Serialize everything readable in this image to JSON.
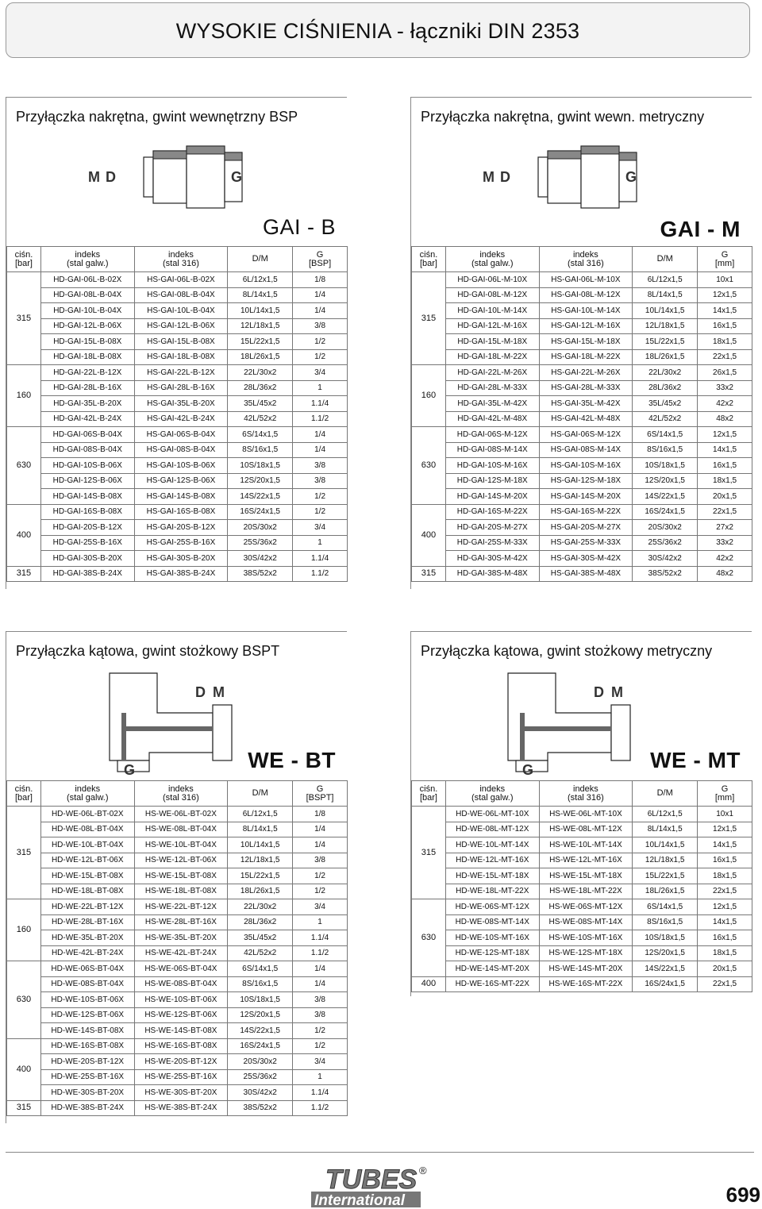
{
  "header": {
    "title": "WYSOKIE CIŚNIENIA - łączniki DIN 2353"
  },
  "columns_b": [
    "ciśn.\n[bar]",
    "indeks\n(stal galw.)",
    "indeks\n(stal 316)",
    "D/M",
    "G\n[BSP]"
  ],
  "columns_m": [
    "ciśn.\n[bar]",
    "indeks\n(stal galw.)",
    "indeks\n(stal 316)",
    "D/M",
    "G\n[mm]"
  ],
  "columns_bt": [
    "ciśn.\n[bar]",
    "indeks\n(stal galw.)",
    "indeks\n(stal 316)",
    "D/M",
    "G\n[BSPT]"
  ],
  "panels": [
    {
      "title": "Przyłączka nakrętna, gwint wewnętrzny BSP",
      "code": "GAI - B",
      "groups": [
        {
          "pressure": "315",
          "rows": [
            [
              "HD-GAI-06L-B-02X",
              "HS-GAI-06L-B-02X",
              "6L/12x1,5",
              "1/8"
            ],
            [
              "HD-GAI-08L-B-04X",
              "HS-GAI-08L-B-04X",
              "8L/14x1,5",
              "1/4"
            ],
            [
              "HD-GAI-10L-B-04X",
              "HS-GAI-10L-B-04X",
              "10L/14x1,5",
              "1/4"
            ],
            [
              "HD-GAI-12L-B-06X",
              "HS-GAI-12L-B-06X",
              "12L/18x1,5",
              "3/8"
            ],
            [
              "HD-GAI-15L-B-08X",
              "HS-GAI-15L-B-08X",
              "15L/22x1,5",
              "1/2"
            ],
            [
              "HD-GAI-18L-B-08X",
              "HS-GAI-18L-B-08X",
              "18L/26x1,5",
              "1/2"
            ]
          ]
        },
        {
          "pressure": "160",
          "rows": [
            [
              "HD-GAI-22L-B-12X",
              "HS-GAI-22L-B-12X",
              "22L/30x2",
              "3/4"
            ],
            [
              "HD-GAI-28L-B-16X",
              "HS-GAI-28L-B-16X",
              "28L/36x2",
              "1"
            ],
            [
              "HD-GAI-35L-B-20X",
              "HS-GAI-35L-B-20X",
              "35L/45x2",
              "1.1/4"
            ],
            [
              "HD-GAI-42L-B-24X",
              "HS-GAI-42L-B-24X",
              "42L/52x2",
              "1.1/2"
            ]
          ]
        },
        {
          "pressure": "630",
          "rows": [
            [
              "HD-GAI-06S-B-04X",
              "HS-GAI-06S-B-04X",
              "6S/14x1,5",
              "1/4"
            ],
            [
              "HD-GAI-08S-B-04X",
              "HS-GAI-08S-B-04X",
              "8S/16x1,5",
              "1/4"
            ],
            [
              "HD-GAI-10S-B-06X",
              "HS-GAI-10S-B-06X",
              "10S/18x1,5",
              "3/8"
            ],
            [
              "HD-GAI-12S-B-06X",
              "HS-GAI-12S-B-06X",
              "12S/20x1,5",
              "3/8"
            ],
            [
              "HD-GAI-14S-B-08X",
              "HS-GAI-14S-B-08X",
              "14S/22x1,5",
              "1/2"
            ]
          ]
        },
        {
          "pressure": "400",
          "rows": [
            [
              "HD-GAI-16S-B-08X",
              "HS-GAI-16S-B-08X",
              "16S/24x1,5",
              "1/2"
            ],
            [
              "HD-GAI-20S-B-12X",
              "HS-GAI-20S-B-12X",
              "20S/30x2",
              "3/4"
            ],
            [
              "HD-GAI-25S-B-16X",
              "HS-GAI-25S-B-16X",
              "25S/36x2",
              "1"
            ],
            [
              "HD-GAI-30S-B-20X",
              "HS-GAI-30S-B-20X",
              "30S/42x2",
              "1.1/4"
            ]
          ]
        },
        {
          "pressure": "315",
          "rows": [
            [
              "HD-GAI-38S-B-24X",
              "HS-GAI-38S-B-24X",
              "38S/52x2",
              "1.1/2"
            ]
          ]
        }
      ]
    },
    {
      "title": "Przyłączka nakrętna, gwint wewn. metryczny",
      "code": "GAI - M",
      "groups": [
        {
          "pressure": "315",
          "rows": [
            [
              "HD-GAI-06L-M-10X",
              "HS-GAI-06L-M-10X",
              "6L/12x1,5",
              "10x1"
            ],
            [
              "HD-GAI-08L-M-12X",
              "HS-GAI-08L-M-12X",
              "8L/14x1,5",
              "12x1,5"
            ],
            [
              "HD-GAI-10L-M-14X",
              "HS-GAI-10L-M-14X",
              "10L/14x1,5",
              "14x1,5"
            ],
            [
              "HD-GAI-12L-M-16X",
              "HS-GAI-12L-M-16X",
              "12L/18x1,5",
              "16x1,5"
            ],
            [
              "HD-GAI-15L-M-18X",
              "HS-GAI-15L-M-18X",
              "15L/22x1,5",
              "18x1,5"
            ],
            [
              "HD-GAI-18L-M-22X",
              "HS-GAI-18L-M-22X",
              "18L/26x1,5",
              "22x1,5"
            ]
          ]
        },
        {
          "pressure": "160",
          "rows": [
            [
              "HD-GAI-22L-M-26X",
              "HS-GAI-22L-M-26X",
              "22L/30x2",
              "26x1,5"
            ],
            [
              "HD-GAI-28L-M-33X",
              "HS-GAI-28L-M-33X",
              "28L/36x2",
              "33x2"
            ],
            [
              "HD-GAI-35L-M-42X",
              "HS-GAI-35L-M-42X",
              "35L/45x2",
              "42x2"
            ],
            [
              "HD-GAI-42L-M-48X",
              "HS-GAI-42L-M-48X",
              "42L/52x2",
              "48x2"
            ]
          ]
        },
        {
          "pressure": "630",
          "rows": [
            [
              "HD-GAI-06S-M-12X",
              "HS-GAI-06S-M-12X",
              "6S/14x1,5",
              "12x1,5"
            ],
            [
              "HD-GAI-08S-M-14X",
              "HS-GAI-08S-M-14X",
              "8S/16x1,5",
              "14x1,5"
            ],
            [
              "HD-GAI-10S-M-16X",
              "HS-GAI-10S-M-16X",
              "10S/18x1,5",
              "16x1,5"
            ],
            [
              "HD-GAI-12S-M-18X",
              "HS-GAI-12S-M-18X",
              "12S/20x1,5",
              "18x1,5"
            ],
            [
              "HD-GAI-14S-M-20X",
              "HS-GAI-14S-M-20X",
              "14S/22x1,5",
              "20x1,5"
            ]
          ]
        },
        {
          "pressure": "400",
          "rows": [
            [
              "HD-GAI-16S-M-22X",
              "HS-GAI-16S-M-22X",
              "16S/24x1,5",
              "22x1,5"
            ],
            [
              "HD-GAI-20S-M-27X",
              "HS-GAI-20S-M-27X",
              "20S/30x2",
              "27x2"
            ],
            [
              "HD-GAI-25S-M-33X",
              "HS-GAI-25S-M-33X",
              "25S/36x2",
              "33x2"
            ],
            [
              "HD-GAI-30S-M-42X",
              "HS-GAI-30S-M-42X",
              "30S/42x2",
              "42x2"
            ]
          ]
        },
        {
          "pressure": "315",
          "rows": [
            [
              "HD-GAI-38S-M-48X",
              "HS-GAI-38S-M-48X",
              "38S/52x2",
              "48x2"
            ]
          ]
        }
      ]
    },
    {
      "title": "Przyłączka kątowa, gwint stożkowy BSPT",
      "code": "WE - BT",
      "groups": [
        {
          "pressure": "315",
          "rows": [
            [
              "HD-WE-06L-BT-02X",
              "HS-WE-06L-BT-02X",
              "6L/12x1,5",
              "1/8"
            ],
            [
              "HD-WE-08L-BT-04X",
              "HS-WE-08L-BT-04X",
              "8L/14x1,5",
              "1/4"
            ],
            [
              "HD-WE-10L-BT-04X",
              "HS-WE-10L-BT-04X",
              "10L/14x1,5",
              "1/4"
            ],
            [
              "HD-WE-12L-BT-06X",
              "HS-WE-12L-BT-06X",
              "12L/18x1,5",
              "3/8"
            ],
            [
              "HD-WE-15L-BT-08X",
              "HS-WE-15L-BT-08X",
              "15L/22x1,5",
              "1/2"
            ],
            [
              "HD-WE-18L-BT-08X",
              "HS-WE-18L-BT-08X",
              "18L/26x1,5",
              "1/2"
            ]
          ]
        },
        {
          "pressure": "160",
          "rows": [
            [
              "HD-WE-22L-BT-12X",
              "HS-WE-22L-BT-12X",
              "22L/30x2",
              "3/4"
            ],
            [
              "HD-WE-28L-BT-16X",
              "HS-WE-28L-BT-16X",
              "28L/36x2",
              "1"
            ],
            [
              "HD-WE-35L-BT-20X",
              "HS-WE-35L-BT-20X",
              "35L/45x2",
              "1.1/4"
            ],
            [
              "HD-WE-42L-BT-24X",
              "HS-WE-42L-BT-24X",
              "42L/52x2",
              "1.1/2"
            ]
          ]
        },
        {
          "pressure": "630",
          "rows": [
            [
              "HD-WE-06S-BT-04X",
              "HS-WE-06S-BT-04X",
              "6S/14x1,5",
              "1/4"
            ],
            [
              "HD-WE-08S-BT-04X",
              "HS-WE-08S-BT-04X",
              "8S/16x1,5",
              "1/4"
            ],
            [
              "HD-WE-10S-BT-06X",
              "HS-WE-10S-BT-06X",
              "10S/18x1,5",
              "3/8"
            ],
            [
              "HD-WE-12S-BT-06X",
              "HS-WE-12S-BT-06X",
              "12S/20x1,5",
              "3/8"
            ],
            [
              "HD-WE-14S-BT-08X",
              "HS-WE-14S-BT-08X",
              "14S/22x1,5",
              "1/2"
            ]
          ]
        },
        {
          "pressure": "400",
          "rows": [
            [
              "HD-WE-16S-BT-08X",
              "HS-WE-16S-BT-08X",
              "16S/24x1,5",
              "1/2"
            ],
            [
              "HD-WE-20S-BT-12X",
              "HS-WE-20S-BT-12X",
              "20S/30x2",
              "3/4"
            ],
            [
              "HD-WE-25S-BT-16X",
              "HS-WE-25S-BT-16X",
              "25S/36x2",
              "1"
            ],
            [
              "HD-WE-30S-BT-20X",
              "HS-WE-30S-BT-20X",
              "30S/42x2",
              "1.1/4"
            ]
          ]
        },
        {
          "pressure": "315",
          "rows": [
            [
              "HD-WE-38S-BT-24X",
              "HS-WE-38S-BT-24X",
              "38S/52x2",
              "1.1/2"
            ]
          ]
        }
      ]
    },
    {
      "title": "Przyłączka kątowa, gwint stożkowy metryczny",
      "code": "WE - MT",
      "groups": [
        {
          "pressure": "315",
          "rows": [
            [
              "HD-WE-06L-MT-10X",
              "HS-WE-06L-MT-10X",
              "6L/12x1,5",
              "10x1"
            ],
            [
              "HD-WE-08L-MT-12X",
              "HS-WE-08L-MT-12X",
              "8L/14x1,5",
              "12x1,5"
            ],
            [
              "HD-WE-10L-MT-14X",
              "HS-WE-10L-MT-14X",
              "10L/14x1,5",
              "14x1,5"
            ],
            [
              "HD-WE-12L-MT-16X",
              "HS-WE-12L-MT-16X",
              "12L/18x1,5",
              "16x1,5"
            ],
            [
              "HD-WE-15L-MT-18X",
              "HS-WE-15L-MT-18X",
              "15L/22x1,5",
              "18x1,5"
            ],
            [
              "HD-WE-18L-MT-22X",
              "HS-WE-18L-MT-22X",
              "18L/26x1,5",
              "22x1,5"
            ]
          ]
        },
        {
          "pressure": "630",
          "rows": [
            [
              "HD-WE-06S-MT-12X",
              "HS-WE-06S-MT-12X",
              "6S/14x1,5",
              "12x1,5"
            ],
            [
              "HD-WE-08S-MT-14X",
              "HS-WE-08S-MT-14X",
              "8S/16x1,5",
              "14x1,5"
            ],
            [
              "HD-WE-10S-MT-16X",
              "HS-WE-10S-MT-16X",
              "10S/18x1,5",
              "16x1,5"
            ],
            [
              "HD-WE-12S-MT-18X",
              "HS-WE-12S-MT-18X",
              "12S/20x1,5",
              "18x1,5"
            ],
            [
              "HD-WE-14S-MT-20X",
              "HS-WE-14S-MT-20X",
              "14S/22x1,5",
              "20x1,5"
            ]
          ]
        },
        {
          "pressure": "400",
          "rows": [
            [
              "HD-WE-16S-MT-22X",
              "HS-WE-16S-MT-22X",
              "16S/24x1,5",
              "22x1,5"
            ]
          ]
        }
      ]
    }
  ],
  "drawing_labels": {
    "m": "M",
    "d": "D",
    "g": "G"
  },
  "footer": {
    "logo_top": "TUBES",
    "logo_reg": "®",
    "logo_bottom": "International",
    "page_number": "699"
  }
}
